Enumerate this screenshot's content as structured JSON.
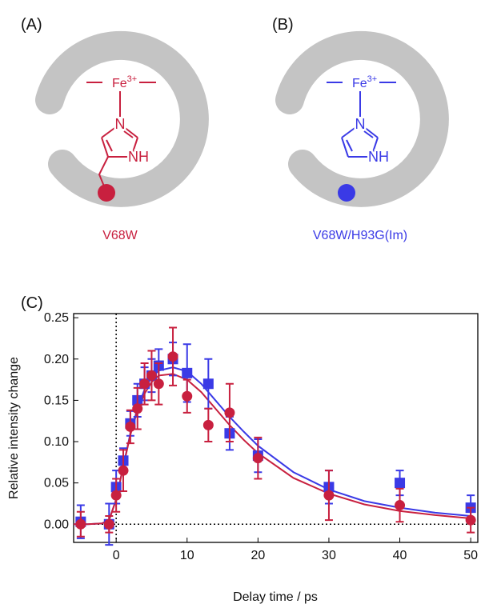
{
  "panels": [
    {
      "label": "(A)",
      "iron": {
        "element": "Fe",
        "charge": "3+"
      },
      "atoms": [
        "N",
        "NH"
      ],
      "caption": "V68W",
      "color": "#c8203f"
    },
    {
      "label": "(B)",
      "iron": {
        "element": "Fe",
        "charge": "3+"
      },
      "atoms": [
        "N",
        "NH"
      ],
      "caption": "V68W/H93G(Im)",
      "color": "#3a3ae6"
    }
  ],
  "chart_data": {
    "type": "scatter",
    "panel_label": "(C)",
    "xlabel": "Delay time / ps",
    "ylabel": "Relative intensity change",
    "xlim": [
      -6,
      51
    ],
    "ylim": [
      -0.022,
      0.255
    ],
    "xticks": [
      0,
      10,
      20,
      30,
      40,
      50
    ],
    "yticks": [
      {
        "value": 0,
        "label": "0.00"
      },
      {
        "value": 0.05,
        "label": "0.05"
      },
      {
        "value": 0.1,
        "label": "0.10"
      },
      {
        "value": 0.15,
        "label": "0.15"
      },
      {
        "value": 0.2,
        "label": "0.20"
      },
      {
        "value": 0.25,
        "label": "0.25"
      }
    ],
    "zero_lines": true,
    "series": [
      {
        "color": "#3a3ae6",
        "marker": "square",
        "x": [
          -5,
          -1,
          0,
          1,
          2,
          3,
          4,
          5,
          6,
          8,
          10,
          13,
          16,
          20,
          30,
          40,
          50
        ],
        "values": [
          0.003,
          0.0,
          0.045,
          0.077,
          0.122,
          0.15,
          0.17,
          0.18,
          0.192,
          0.2,
          0.183,
          0.17,
          0.11,
          0.083,
          0.045,
          0.05,
          0.02
        ],
        "errors": [
          0.02,
          0.025,
          0.02,
          0.015,
          0.015,
          0.02,
          0.02,
          0.02,
          0.02,
          0.02,
          0.035,
          0.03,
          0.02,
          0.02,
          0.02,
          0.015,
          0.015
        ]
      },
      {
        "color": "#c8203f",
        "marker": "circle",
        "x": [
          -5,
          -1,
          0,
          1,
          2,
          3,
          4,
          5,
          6,
          8,
          10,
          13,
          16,
          20,
          30,
          40,
          50
        ],
        "values": [
          0.0,
          0.0,
          0.035,
          0.065,
          0.118,
          0.14,
          0.17,
          0.18,
          0.17,
          0.203,
          0.155,
          0.12,
          0.135,
          0.08,
          0.035,
          0.023,
          0.005
        ],
        "errors": [
          0.015,
          0.01,
          0.02,
          0.025,
          0.02,
          0.025,
          0.025,
          0.03,
          0.025,
          0.035,
          0.02,
          0.02,
          0.035,
          0.025,
          0.03,
          0.02,
          0.015
        ]
      }
    ],
    "fits": [
      {
        "color": "#3a3ae6",
        "x": [
          -6,
          -4,
          -2,
          -1,
          0,
          1,
          2,
          3,
          4,
          5,
          6,
          8,
          10,
          12,
          14,
          16,
          18,
          20,
          25,
          30,
          35,
          40,
          45,
          50
        ],
        "values": [
          0,
          0,
          0.001,
          0.005,
          0.03,
          0.07,
          0.11,
          0.14,
          0.163,
          0.178,
          0.186,
          0.19,
          0.185,
          0.17,
          0.15,
          0.13,
          0.112,
          0.095,
          0.063,
          0.042,
          0.028,
          0.02,
          0.014,
          0.01
        ]
      },
      {
        "color": "#c8203f",
        "x": [
          -6,
          -4,
          -2,
          -1,
          0,
          1,
          2,
          3,
          4,
          5,
          6,
          8,
          10,
          12,
          14,
          16,
          18,
          20,
          25,
          30,
          35,
          40,
          45,
          50
        ],
        "values": [
          0,
          0,
          0.001,
          0.005,
          0.03,
          0.07,
          0.108,
          0.138,
          0.158,
          0.172,
          0.18,
          0.182,
          0.175,
          0.16,
          0.14,
          0.12,
          0.102,
          0.086,
          0.056,
          0.037,
          0.024,
          0.016,
          0.011,
          0.007
        ]
      }
    ]
  }
}
